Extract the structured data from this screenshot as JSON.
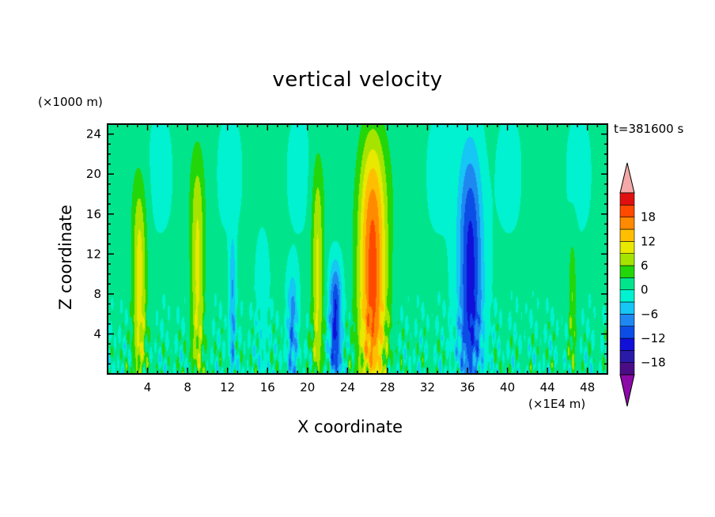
{
  "chart_data": {
    "type": "heatmap",
    "title": "vertical velocity",
    "xlabel": "X coordinate",
    "ylabel": "Z coordinate",
    "x_unit": "(×1E4 m)",
    "z_unit": "(×1000 m)",
    "time_label": "t=381600 s",
    "xlim": [
      0,
      50
    ],
    "zlim": [
      0,
      25
    ],
    "x_ticks": [
      4,
      8,
      12,
      16,
      20,
      24,
      28,
      32,
      36,
      40,
      44,
      48
    ],
    "z_ticks": [
      4,
      8,
      12,
      16,
      20,
      24
    ],
    "colorbar": {
      "levels": [
        -21,
        -18,
        -15,
        -12,
        -9,
        -6,
        -3,
        0,
        3,
        6,
        9,
        12,
        15,
        18,
        21
      ],
      "tick_labels": [
        -18,
        -12,
        -6,
        0,
        6,
        12,
        18
      ],
      "colors": [
        "#4b0d86",
        "#2a1aa8",
        "#1010d8",
        "#0c4de6",
        "#1f88f0",
        "#16c6f4",
        "#00f2d0",
        "#00e58c",
        "#22d60a",
        "#a6e400",
        "#e8e800",
        "#ffbf00",
        "#ff8a00",
        "#ff4a00",
        "#e01010"
      ],
      "under_color": "#8b0aa8",
      "over_color": "#f5a8a8"
    },
    "features": [
      {
        "x": 3.2,
        "ztop": 19,
        "peak": 10,
        "width": 0.7
      },
      {
        "x": 9.0,
        "ztop": 21,
        "peak": 9,
        "width": 0.7
      },
      {
        "x": 12.5,
        "ztop": 14,
        "peak": -7,
        "width": 0.3
      },
      {
        "x": 15.5,
        "ztop": 16,
        "peak": -2,
        "width": 0.7
      },
      {
        "x": 18.5,
        "ztop": 10,
        "peak": -8,
        "width": 0.5
      },
      {
        "x": 21.0,
        "ztop": 21,
        "peak": 9,
        "width": 0.6
      },
      {
        "x": 22.8,
        "ztop": 11,
        "peak": -13,
        "width": 0.6
      },
      {
        "x": 26.5,
        "ztop": 24,
        "peak": 19,
        "width": 1.4
      },
      {
        "x": 36.3,
        "ztop": 23,
        "peak": -14,
        "width": 1.2
      },
      {
        "x": 46.5,
        "ztop": 14,
        "peak": 5,
        "width": 0.4
      }
    ]
  }
}
